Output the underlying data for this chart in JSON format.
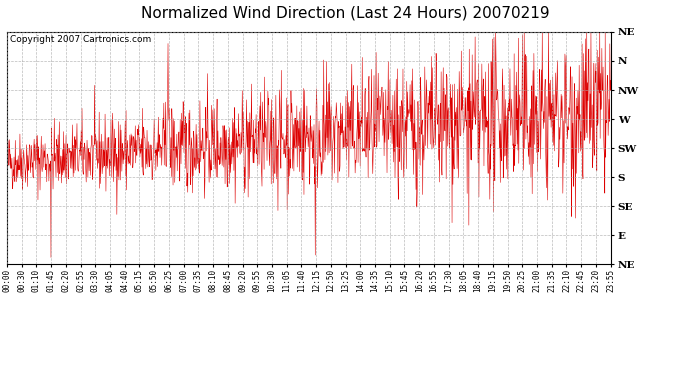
{
  "title": "Normalized Wind Direction (Last 24 Hours) 20070219",
  "copyright": "Copyright 2007 Cartronics.com",
  "line_color": "#dd0000",
  "background_color": "#ffffff",
  "grid_color": "#aaaaaa",
  "ytick_labels": [
    "NE",
    "N",
    "NW",
    "W",
    "SW",
    "S",
    "SE",
    "E",
    "NE"
  ],
  "ytick_values": [
    1.0,
    0.875,
    0.75,
    0.625,
    0.5,
    0.375,
    0.25,
    0.125,
    0.0
  ],
  "xtick_labels": [
    "00:00",
    "00:30",
    "01:10",
    "01:45",
    "02:20",
    "02:55",
    "03:30",
    "04:05",
    "04:40",
    "05:15",
    "05:50",
    "06:25",
    "07:00",
    "07:35",
    "08:10",
    "08:45",
    "09:20",
    "09:55",
    "10:30",
    "11:05",
    "11:40",
    "12:15",
    "12:50",
    "13:25",
    "14:00",
    "14:35",
    "15:10",
    "15:45",
    "16:20",
    "16:55",
    "17:30",
    "18:05",
    "18:40",
    "19:15",
    "19:50",
    "20:25",
    "21:00",
    "21:35",
    "22:10",
    "22:45",
    "23:20",
    "23:55"
  ],
  "seed": 42,
  "n_points": 1440,
  "title_fontsize": 11,
  "copyright_fontsize": 6.5,
  "xtick_fontsize": 5.5,
  "ytick_fontsize": 7.5
}
